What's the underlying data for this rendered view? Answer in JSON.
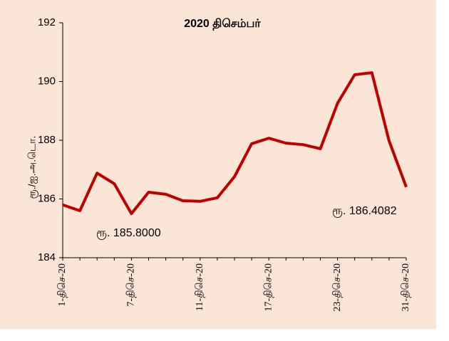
{
  "chart_data": {
    "type": "line",
    "title": "2020 திசெம்பர்",
    "y_label": "ரூ./ஐ.அ.டொ.",
    "categories": [
      "1-திசெ-20",
      null,
      null,
      null,
      "7-திசெ-20",
      null,
      null,
      null,
      "11-திசெ-20",
      null,
      null,
      null,
      "17-திசெ-20",
      null,
      null,
      null,
      "23-திசெ-20",
      null,
      null,
      null,
      "31-திசெ-20"
    ],
    "series": [
      {
        "name": "ரூ./ஐ.அ.டொ.",
        "color": "#c00000",
        "values": [
          185.8,
          185.6,
          186.88,
          186.52,
          185.5,
          186.23,
          186.16,
          185.94,
          185.92,
          186.04,
          186.76,
          187.88,
          188.07,
          187.9,
          187.85,
          187.71,
          189.26,
          190.23,
          190.3,
          187.98,
          186.4082
        ]
      }
    ],
    "annotations": [
      "ரூ. 185.8000",
      "ரூ. 186.4082"
    ],
    "ylim": [
      184,
      192
    ],
    "yticks": [
      184,
      186,
      188,
      190,
      192
    ],
    "grid": false
  }
}
